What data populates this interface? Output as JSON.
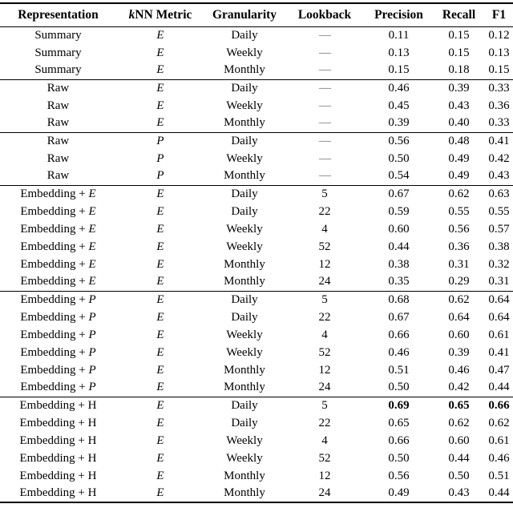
{
  "header": {
    "representation": "Representation",
    "knn_prefix": "k",
    "knn_rest": "NN Metric",
    "granularity": "Granularity",
    "lookback": "Lookback",
    "precision": "Precision",
    "recall": "Recall",
    "f1": "F1"
  },
  "chart_data": {
    "type": "table",
    "columns": [
      "Representation",
      "kNN Metric",
      "Granularity",
      "Lookback",
      "Precision",
      "Recall",
      "F1"
    ],
    "groups": [
      {
        "rows": [
          {
            "rep_base": "Summary",
            "rep_italic": "",
            "metric": "E",
            "granularity": "Daily",
            "lookback": "—",
            "precision": "0.11",
            "recall": "0.15",
            "f1": "0.12",
            "bold": false
          },
          {
            "rep_base": "Summary",
            "rep_italic": "",
            "metric": "E",
            "granularity": "Weekly",
            "lookback": "—",
            "precision": "0.13",
            "recall": "0.15",
            "f1": "0.13",
            "bold": false
          },
          {
            "rep_base": "Summary",
            "rep_italic": "",
            "metric": "E",
            "granularity": "Monthly",
            "lookback": "—",
            "precision": "0.15",
            "recall": "0.18",
            "f1": "0.15",
            "bold": false
          }
        ]
      },
      {
        "rows": [
          {
            "rep_base": "Raw",
            "rep_italic": "",
            "metric": "E",
            "granularity": "Daily",
            "lookback": "—",
            "precision": "0.46",
            "recall": "0.39",
            "f1": "0.33",
            "bold": false
          },
          {
            "rep_base": "Raw",
            "rep_italic": "",
            "metric": "E",
            "granularity": "Weekly",
            "lookback": "—",
            "precision": "0.45",
            "recall": "0.43",
            "f1": "0.36",
            "bold": false
          },
          {
            "rep_base": "Raw",
            "rep_italic": "",
            "metric": "E",
            "granularity": "Monthly",
            "lookback": "—",
            "precision": "0.39",
            "recall": "0.40",
            "f1": "0.33",
            "bold": false
          }
        ]
      },
      {
        "rows": [
          {
            "rep_base": "Raw",
            "rep_italic": "",
            "metric": "P",
            "granularity": "Daily",
            "lookback": "—",
            "precision": "0.56",
            "recall": "0.48",
            "f1": "0.41",
            "bold": false
          },
          {
            "rep_base": "Raw",
            "rep_italic": "",
            "metric": "P",
            "granularity": "Weekly",
            "lookback": "—",
            "precision": "0.50",
            "recall": "0.49",
            "f1": "0.42",
            "bold": false
          },
          {
            "rep_base": "Raw",
            "rep_italic": "",
            "metric": "P",
            "granularity": "Monthly",
            "lookback": "—",
            "precision": "0.54",
            "recall": "0.49",
            "f1": "0.43",
            "bold": false
          }
        ]
      },
      {
        "rows": [
          {
            "rep_base": "Embedding + ",
            "rep_italic": "E",
            "metric": "E",
            "granularity": "Daily",
            "lookback": "5",
            "precision": "0.67",
            "recall": "0.62",
            "f1": "0.63",
            "bold": false
          },
          {
            "rep_base": "Embedding + ",
            "rep_italic": "E",
            "metric": "E",
            "granularity": "Daily",
            "lookback": "22",
            "precision": "0.59",
            "recall": "0.55",
            "f1": "0.55",
            "bold": false
          },
          {
            "rep_base": "Embedding + ",
            "rep_italic": "E",
            "metric": "E",
            "granularity": "Weekly",
            "lookback": "4",
            "precision": "0.60",
            "recall": "0.56",
            "f1": "0.57",
            "bold": false
          },
          {
            "rep_base": "Embedding + ",
            "rep_italic": "E",
            "metric": "E",
            "granularity": "Weekly",
            "lookback": "52",
            "precision": "0.44",
            "recall": "0.36",
            "f1": "0.38",
            "bold": false
          },
          {
            "rep_base": "Embedding + ",
            "rep_italic": "E",
            "metric": "E",
            "granularity": "Monthly",
            "lookback": "12",
            "precision": "0.38",
            "recall": "0.31",
            "f1": "0.32",
            "bold": false
          },
          {
            "rep_base": "Embedding + ",
            "rep_italic": "E",
            "metric": "E",
            "granularity": "Monthly",
            "lookback": "24",
            "precision": "0.35",
            "recall": "0.29",
            "f1": "0.31",
            "bold": false
          }
        ]
      },
      {
        "rows": [
          {
            "rep_base": "Embedding + ",
            "rep_italic": "P",
            "metric": "E",
            "granularity": "Daily",
            "lookback": "5",
            "precision": "0.68",
            "recall": "0.62",
            "f1": "0.64",
            "bold": false
          },
          {
            "rep_base": "Embedding + ",
            "rep_italic": "P",
            "metric": "E",
            "granularity": "Daily",
            "lookback": "22",
            "precision": "0.67",
            "recall": "0.64",
            "f1": "0.64",
            "bold": false
          },
          {
            "rep_base": "Embedding + ",
            "rep_italic": "P",
            "metric": "E",
            "granularity": "Weekly",
            "lookback": "4",
            "precision": "0.66",
            "recall": "0.60",
            "f1": "0.61",
            "bold": false
          },
          {
            "rep_base": "Embedding + ",
            "rep_italic": "P",
            "metric": "E",
            "granularity": "Weekly",
            "lookback": "52",
            "precision": "0.46",
            "recall": "0.39",
            "f1": "0.41",
            "bold": false
          },
          {
            "rep_base": "Embedding + ",
            "rep_italic": "P",
            "metric": "E",
            "granularity": "Monthly",
            "lookback": "12",
            "precision": "0.51",
            "recall": "0.46",
            "f1": "0.47",
            "bold": false
          },
          {
            "rep_base": "Embedding + ",
            "rep_italic": "P",
            "metric": "E",
            "granularity": "Monthly",
            "lookback": "24",
            "precision": "0.50",
            "recall": "0.42",
            "f1": "0.44",
            "bold": false
          }
        ]
      },
      {
        "rows": [
          {
            "rep_base": "Embedding + H",
            "rep_italic": "",
            "metric": "E",
            "granularity": "Daily",
            "lookback": "5",
            "precision": "0.69",
            "recall": "0.65",
            "f1": "0.66",
            "bold": true
          },
          {
            "rep_base": "Embedding + H",
            "rep_italic": "",
            "metric": "E",
            "granularity": "Daily",
            "lookback": "22",
            "precision": "0.65",
            "recall": "0.62",
            "f1": "0.62",
            "bold": false
          },
          {
            "rep_base": "Embedding + H",
            "rep_italic": "",
            "metric": "E",
            "granularity": "Weekly",
            "lookback": "4",
            "precision": "0.66",
            "recall": "0.60",
            "f1": "0.61",
            "bold": false
          },
          {
            "rep_base": "Embedding + H",
            "rep_italic": "",
            "metric": "E",
            "granularity": "Weekly",
            "lookback": "52",
            "precision": "0.50",
            "recall": "0.44",
            "f1": "0.46",
            "bold": false
          },
          {
            "rep_base": "Embedding + H",
            "rep_italic": "",
            "metric": "E",
            "granularity": "Monthly",
            "lookback": "12",
            "precision": "0.56",
            "recall": "0.50",
            "f1": "0.51",
            "bold": false
          },
          {
            "rep_base": "Embedding + H",
            "rep_italic": "",
            "metric": "E",
            "granularity": "Monthly",
            "lookback": "24",
            "precision": "0.49",
            "recall": "0.43",
            "f1": "0.44",
            "bold": false
          }
        ]
      }
    ]
  }
}
